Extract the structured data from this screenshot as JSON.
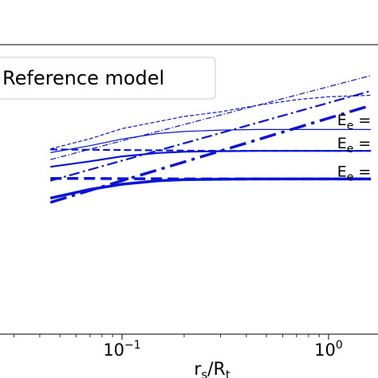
{
  "chart_data": {
    "type": "line",
    "x_scale": "log",
    "xlim": [
      0.045,
      1.6
    ],
    "ylim": [
      0,
      1
    ],
    "grid": false,
    "legend": {
      "placement": "top-left",
      "entries": [
        "Reference model"
      ]
    },
    "xlabel": {
      "main": "r",
      "sub1": "s",
      "mid": "/R",
      "sub2": "t"
    },
    "x_ticks": [
      {
        "value": 0.1,
        "base": "10",
        "exp": "−1"
      },
      {
        "value": 1,
        "base": "10",
        "exp": "0"
      }
    ],
    "annotations": [
      {
        "base": "E",
        "sub": "e",
        "rest": " =",
        "x": 1.1,
        "y": 0.713
      },
      {
        "base": "E",
        "sub": "e",
        "rest": " =",
        "x": 1.1,
        "y": 0.633
      },
      {
        "base": "E",
        "sub": "e",
        "rest": " =",
        "x": 1.1,
        "y": 0.536
      }
    ],
    "color": "#0a14d6",
    "series": [
      {
        "style": "solid",
        "width": 1.2,
        "x": [
          0.045,
          0.07,
          0.1,
          0.15,
          0.2,
          0.3,
          0.45,
          0.7,
          1.0,
          1.6
        ],
        "y": [
          0.627,
          0.651,
          0.674,
          0.693,
          0.7,
          0.705,
          0.707,
          0.707,
          0.707,
          0.707
        ]
      },
      {
        "style": "solid",
        "width": 2.2,
        "x": [
          0.045,
          0.07,
          0.1,
          0.15,
          0.2,
          0.3,
          0.45,
          0.7,
          1.0,
          1.6
        ],
        "y": [
          0.578,
          0.597,
          0.614,
          0.626,
          0.63,
          0.632,
          0.633,
          0.633,
          0.633,
          0.633
        ]
      },
      {
        "style": "solid",
        "width": 3.5,
        "x": [
          0.045,
          0.07,
          0.1,
          0.15,
          0.2,
          0.3,
          0.45,
          0.7,
          1.0,
          1.6
        ],
        "y": [
          0.47,
          0.5,
          0.518,
          0.53,
          0.534,
          0.535,
          0.536,
          0.536,
          0.536,
          0.536
        ]
      },
      {
        "style": "dashed",
        "width": 1.2,
        "x": [
          0.045,
          0.07,
          0.1,
          0.2,
          0.3,
          0.45,
          0.7,
          1.0,
          1.6
        ],
        "y": [
          0.64,
          0.675,
          0.71,
          0.752,
          0.768,
          0.79,
          0.81,
          0.82,
          0.825
        ]
      },
      {
        "style": "dashed",
        "width": 2.2,
        "x": [
          0.045,
          0.07,
          0.1,
          0.15,
          0.2,
          0.3,
          0.45,
          0.7,
          1.0,
          1.6
        ],
        "y": [
          0.638,
          0.637,
          0.636,
          0.635,
          0.634,
          0.633,
          0.633,
          0.633,
          0.633,
          0.633
        ]
      },
      {
        "style": "dashed",
        "width": 3.5,
        "x": [
          0.045,
          0.07,
          0.1,
          0.15,
          0.2,
          0.3,
          0.45,
          0.7,
          1.0,
          1.6
        ],
        "y": [
          0.538,
          0.538,
          0.537,
          0.537,
          0.536,
          0.536,
          0.536,
          0.536,
          0.536,
          0.536
        ]
      },
      {
        "style": "dashdot",
        "width": 1.2,
        "x": [
          0.045,
          1.6
        ],
        "y": [
          0.603,
          0.893
        ]
      },
      {
        "style": "dashdot",
        "width": 2.2,
        "x": [
          0.045,
          1.6
        ],
        "y": [
          0.53,
          0.84
        ]
      },
      {
        "style": "dashdot",
        "width": 3.5,
        "x": [
          0.045,
          1.6
        ],
        "y": [
          0.455,
          0.79
        ]
      }
    ]
  }
}
